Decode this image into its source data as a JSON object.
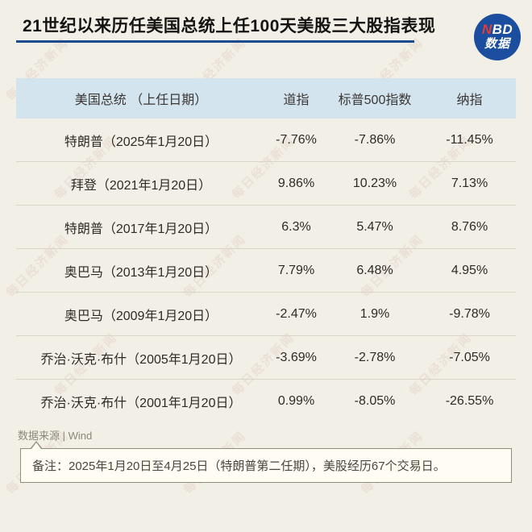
{
  "page": {
    "title": "21世纪以来历任美国总统上任100天美股三大股指表现",
    "background_color": "#f2efe7",
    "accent_color": "#1e4b8e"
  },
  "logo": {
    "line1_red": "N",
    "line1_rest": "BD",
    "line2": "数据",
    "bg_color": "#1b4e9e",
    "n_color": "#e23b3c"
  },
  "watermark": {
    "text": "每日经济新闻"
  },
  "table": {
    "header_bg": "#d3e4ef",
    "header": {
      "president": "美国总统 （上任日期）",
      "dow": "道指",
      "sp500": "标普500指数",
      "nasdaq": "纳指"
    },
    "rows": [
      {
        "president": "特朗普（2025年1月20日）",
        "dow": "-7.76%",
        "sp500": "-7.86%",
        "nasdaq": "-11.45%"
      },
      {
        "president": "拜登（2021年1月20日）",
        "dow": "9.86%",
        "sp500": "10.23%",
        "nasdaq": "7.13%"
      },
      {
        "president": "特朗普（2017年1月20日）",
        "dow": "6.3%",
        "sp500": "5.47%",
        "nasdaq": "8.76%"
      },
      {
        "president": "奥巴马（2013年1月20日）",
        "dow": "7.79%",
        "sp500": "6.48%",
        "nasdaq": "4.95%"
      },
      {
        "president": "奥巴马（2009年1月20日）",
        "dow": "-2.47%",
        "sp500": "1.9%",
        "nasdaq": "-9.78%"
      },
      {
        "president": "乔治·沃克·布什（2005年1月20日）",
        "dow": "-3.69%",
        "sp500": "-2.78%",
        "nasdaq": "-7.05%"
      },
      {
        "president": "乔治·沃克·布什（2001年1月20日）",
        "dow": "0.99%",
        "sp500": "-8.05%",
        "nasdaq": "-26.55%"
      }
    ]
  },
  "footer": {
    "source": "数据来源 | Wind",
    "note": "备注：2025年1月20日至4月25日（特朗普第二任期），美股经历67个交易日。"
  },
  "chart_data": {
    "type": "table",
    "title": "21世纪以来历任美国总统上任100天美股三大股指表现",
    "columns": [
      "美国总统（上任日期）",
      "道指",
      "标普500指数",
      "纳指"
    ],
    "rows": [
      [
        "特朗普（2025年1月20日）",
        -7.76,
        -7.86,
        -11.45
      ],
      [
        "拜登（2021年1月20日）",
        9.86,
        10.23,
        7.13
      ],
      [
        "特朗普（2017年1月20日）",
        6.3,
        5.47,
        8.76
      ],
      [
        "奥巴马（2013年1月20日）",
        7.79,
        6.48,
        4.95
      ],
      [
        "奥巴马（2009年1月20日）",
        -2.47,
        1.9,
        -9.78
      ],
      [
        "乔治·沃克·布什（2005年1月20日）",
        -3.69,
        -2.78,
        -7.05
      ],
      [
        "乔治·沃克·布什（2001年1月20日）",
        0.99,
        -8.05,
        -26.55
      ]
    ],
    "units": "percent",
    "source": "Wind",
    "note": "备注：2025年1月20日至4月25日（特朗普第二任期），美股经历67个交易日。"
  }
}
